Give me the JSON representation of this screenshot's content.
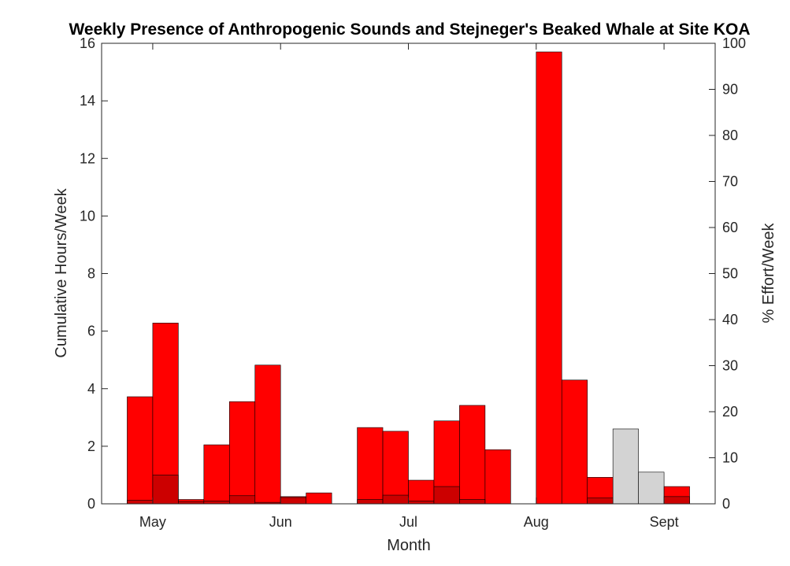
{
  "chart_data": {
    "type": "bar",
    "title": "Weekly Presence of Anthropogenic Sounds and Stejneger's Beaked Whale at Site KOA",
    "xlabel": "Month",
    "ylabel": "Cumulative Hours/Week",
    "y2label": "% Effort/Week",
    "ylim": [
      0,
      16
    ],
    "y2lim": [
      0,
      100
    ],
    "xlim": [
      -1.5,
      22.5
    ],
    "yticks": [
      0,
      2,
      4,
      6,
      8,
      10,
      12,
      14,
      16
    ],
    "y2ticks": [
      0,
      10,
      20,
      30,
      40,
      50,
      60,
      70,
      80,
      90,
      100
    ],
    "months": [
      {
        "label": "May",
        "x": 0.5
      },
      {
        "label": "Jun",
        "x": 5.5
      },
      {
        "label": "Jul",
        "x": 10.5
      },
      {
        "label": "Aug",
        "x": 15.5
      },
      {
        "label": "Sept",
        "x": 20.5
      }
    ],
    "week_index": [
      0,
      1,
      2,
      3,
      4,
      5,
      6,
      7,
      9,
      10,
      11,
      12,
      13,
      14,
      16,
      17,
      18,
      19,
      20,
      21
    ],
    "series": [
      {
        "values": [
          3.72,
          6.28,
          0.15,
          2.05,
          3.55,
          4.82,
          0.25,
          0.38,
          2.65,
          2.52,
          0.82,
          2.88,
          3.42,
          1.88,
          15.7,
          4.3,
          0.92,
          0,
          0,
          0.6
        ]
      },
      {
        "values": [
          0.12,
          1.0,
          0.08,
          0.1,
          0.28,
          0.05,
          0.22,
          0,
          0.15,
          0.3,
          0.1,
          0.6,
          0.15,
          0,
          0,
          0,
          0.2,
          0,
          0,
          0.25
        ]
      },
      {
        "values": [
          0,
          0,
          0,
          0,
          0,
          0,
          0,
          0,
          0,
          0,
          0,
          0,
          0,
          0,
          0,
          0,
          0,
          2.6,
          1.1,
          0.1
        ]
      }
    ],
    "grid": false,
    "colors": {
      "anthropogenic": "#ff0000",
      "whale": "#cc0000",
      "effort": "#d3d3d3",
      "edge": "#000000"
    }
  }
}
